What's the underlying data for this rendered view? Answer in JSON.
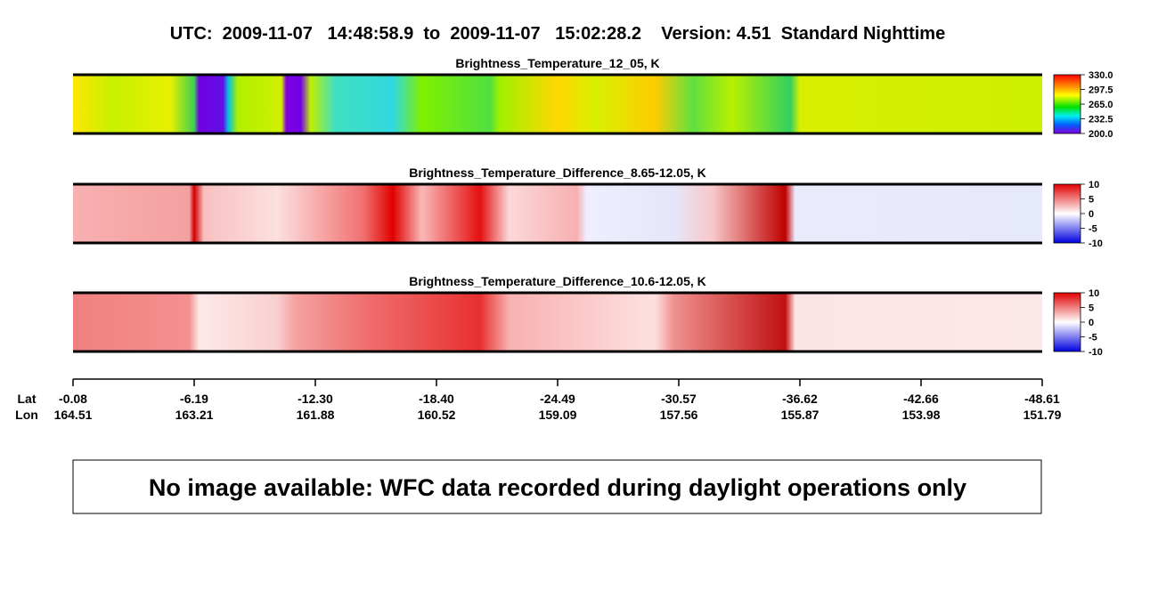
{
  "header": {
    "title": "UTC:  2009-11-07   14:48:58.9  to  2009-11-07   15:02:28.2    Version: 4.51  Standard Nighttime"
  },
  "panels": [
    {
      "title": "Brightness_Temperature_12_05, K",
      "colorbar_labels": [
        "330.0",
        "297.5",
        "265.0",
        "232.5",
        "200.0"
      ]
    },
    {
      "title": "Brightness_Temperature_Difference_8.65-12.05, K",
      "colorbar_labels": [
        "10",
        "5",
        "0",
        "-5",
        "-10"
      ]
    },
    {
      "title": "Brightness_Temperature_Difference_10.6-12.05, K",
      "colorbar_labels": [
        "10",
        "5",
        "0",
        "-5",
        "-10"
      ]
    }
  ],
  "axis": {
    "lat_label": "Lat",
    "lon_label": "Lon",
    "lat": [
      "-0.08",
      "-6.19",
      "-12.30",
      "-18.40",
      "-24.49",
      "-30.57",
      "-36.62",
      "-42.66",
      "-48.61"
    ],
    "lon": [
      "164.51",
      "163.21",
      "161.88",
      "160.52",
      "159.09",
      "157.56",
      "155.87",
      "153.98",
      "151.79"
    ]
  },
  "message": "No image available: WFC data recorded during daylight operations only"
}
